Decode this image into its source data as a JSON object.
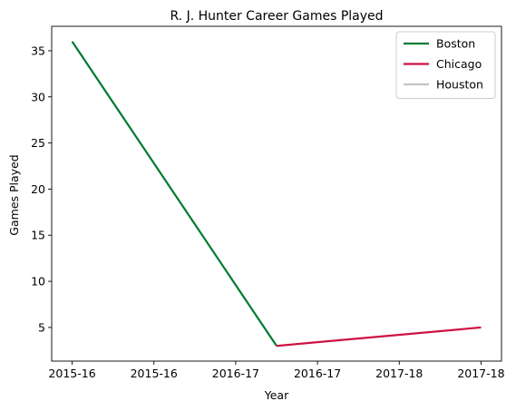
{
  "chart_data": {
    "type": "line",
    "title": "R. J. Hunter Career Games Played",
    "xlabel": "Year",
    "ylabel": "Games Played",
    "x_tick_labels": [
      "2015-16",
      "2015-16",
      "2016-17",
      "2016-17",
      "2017-18",
      "2017-18"
    ],
    "x_tick_positions": [
      0,
      1,
      2,
      3,
      4,
      5
    ],
    "xlim": [
      -0.25,
      5.25
    ],
    "ylim": [
      1.35,
      37.65
    ],
    "y_ticks": [
      5,
      10,
      15,
      20,
      25,
      30,
      35
    ],
    "grid": false,
    "legend_position": "top-right",
    "series": [
      {
        "name": "Boston",
        "color": "#007A33",
        "points": [
          [
            0,
            36
          ],
          [
            2.5,
            3
          ]
        ]
      },
      {
        "name": "Chicago",
        "color": "#CE1141",
        "points": [
          [
            2.5,
            3
          ],
          [
            5,
            5
          ]
        ]
      },
      {
        "name": "Houston",
        "color": "#C4C4C4",
        "points": []
      }
    ]
  }
}
